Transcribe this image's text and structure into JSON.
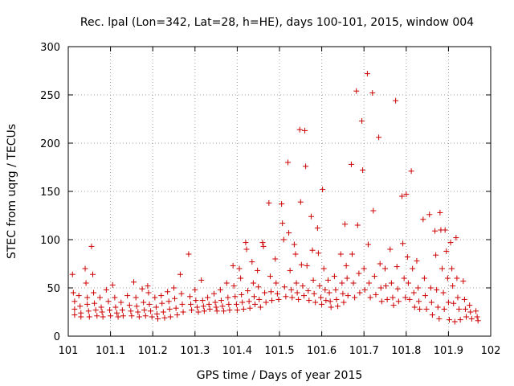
{
  "chart_data": {
    "type": "scatter",
    "title": "Rec. lpal (Lon=342, Lat=28, h=HE), days 100-101, 2015, window 004",
    "xlabel": "GPS time / Days of year 2015",
    "ylabel": "STEC from uqrg / TECUs",
    "xlim": [
      101,
      102
    ],
    "ylim": [
      0,
      300
    ],
    "xticks": [
      "101",
      "101.1",
      "101.2",
      "101.3",
      "101.4",
      "101.5",
      "101.6",
      "101.7",
      "101.8",
      "101.9",
      "102"
    ],
    "yticks": [
      "0",
      "50",
      "100",
      "150",
      "200",
      "250",
      "300"
    ],
    "grid": true,
    "marker": "+",
    "color": "#cc0000",
    "series": [
      {
        "points": [
          [
            101.01,
            64
          ],
          [
            101.012,
            45
          ],
          [
            101.015,
            36
          ],
          [
            101.015,
            28
          ],
          [
            101.015,
            22
          ],
          [
            101.025,
            42
          ],
          [
            101.028,
            31
          ],
          [
            101.03,
            24
          ],
          [
            101.03,
            20
          ],
          [
            101.04,
            70
          ],
          [
            101.042,
            55
          ],
          [
            101.045,
            40
          ],
          [
            101.045,
            33
          ],
          [
            101.048,
            26
          ],
          [
            101.05,
            20
          ],
          [
            101.055,
            93
          ],
          [
            101.058,
            64
          ],
          [
            101.06,
            45
          ],
          [
            101.062,
            34
          ],
          [
            101.065,
            27
          ],
          [
            101.068,
            21
          ],
          [
            101.075,
            40
          ],
          [
            101.078,
            30
          ],
          [
            101.08,
            25
          ],
          [
            101.082,
            20
          ],
          [
            101.09,
            48
          ],
          [
            101.095,
            36
          ],
          [
            101.098,
            27
          ],
          [
            101.1,
            21
          ],
          [
            101.105,
            53
          ],
          [
            101.11,
            40
          ],
          [
            101.112,
            30
          ],
          [
            101.115,
            24
          ],
          [
            101.118,
            20
          ],
          [
            101.125,
            35
          ],
          [
            101.128,
            27
          ],
          [
            101.13,
            21
          ],
          [
            101.14,
            42
          ],
          [
            101.145,
            32
          ],
          [
            101.148,
            26
          ],
          [
            101.15,
            21
          ],
          [
            101.155,
            56
          ],
          [
            101.16,
            40
          ],
          [
            101.162,
            31
          ],
          [
            101.165,
            25
          ],
          [
            101.168,
            20
          ],
          [
            101.175,
            49
          ],
          [
            101.178,
            35
          ],
          [
            101.18,
            27
          ],
          [
            101.183,
            21
          ],
          [
            101.188,
            52
          ],
          [
            101.19,
            45
          ],
          [
            101.192,
            33
          ],
          [
            101.195,
            26
          ],
          [
            101.198,
            20
          ],
          [
            101.205,
            40
          ],
          [
            101.208,
            30
          ],
          [
            101.21,
            23
          ],
          [
            101.212,
            18
          ],
          [
            101.22,
            42
          ],
          [
            101.222,
            34
          ],
          [
            101.225,
            25
          ],
          [
            101.228,
            19
          ],
          [
            101.235,
            46
          ],
          [
            101.238,
            36
          ],
          [
            101.24,
            28
          ],
          [
            101.242,
            20
          ],
          [
            101.25,
            50
          ],
          [
            101.252,
            39
          ],
          [
            101.255,
            29
          ],
          [
            101.258,
            22
          ],
          [
            101.265,
            64
          ],
          [
            101.268,
            44
          ],
          [
            101.27,
            33
          ],
          [
            101.272,
            25
          ],
          [
            101.285,
            85
          ],
          [
            101.288,
            41
          ],
          [
            101.29,
            33
          ],
          [
            101.292,
            27
          ],
          [
            101.3,
            48
          ],
          [
            101.302,
            37
          ],
          [
            101.305,
            30
          ],
          [
            101.308,
            25
          ],
          [
            101.315,
            58
          ],
          [
            101.318,
            37
          ],
          [
            101.32,
            31
          ],
          [
            101.322,
            26
          ],
          [
            101.33,
            40
          ],
          [
            101.333,
            33
          ],
          [
            101.335,
            28
          ],
          [
            101.345,
            44
          ],
          [
            101.348,
            35
          ],
          [
            101.35,
            30
          ],
          [
            101.352,
            26
          ],
          [
            101.36,
            48
          ],
          [
            101.362,
            37
          ],
          [
            101.365,
            31
          ],
          [
            101.368,
            26
          ],
          [
            101.375,
            55
          ],
          [
            101.378,
            40
          ],
          [
            101.38,
            33
          ],
          [
            101.382,
            27
          ],
          [
            101.39,
            73
          ],
          [
            101.392,
            52
          ],
          [
            101.395,
            41
          ],
          [
            101.398,
            33
          ],
          [
            101.4,
            27
          ],
          [
            101.405,
            70
          ],
          [
            101.408,
            60
          ],
          [
            101.41,
            43
          ],
          [
            101.412,
            35
          ],
          [
            101.415,
            28
          ],
          [
            101.42,
            97
          ],
          [
            101.422,
            90
          ],
          [
            101.425,
            47
          ],
          [
            101.428,
            36
          ],
          [
            101.43,
            29
          ],
          [
            101.435,
            77
          ],
          [
            101.438,
            55
          ],
          [
            101.44,
            41
          ],
          [
            101.442,
            33
          ],
          [
            101.448,
            68
          ],
          [
            101.45,
            51
          ],
          [
            101.452,
            38
          ],
          [
            101.455,
            30
          ],
          [
            101.46,
            97
          ],
          [
            101.462,
            93
          ],
          [
            101.465,
            45
          ],
          [
            101.468,
            35
          ],
          [
            101.475,
            138
          ],
          [
            101.478,
            62
          ],
          [
            101.48,
            46
          ],
          [
            101.482,
            37
          ],
          [
            101.49,
            80
          ],
          [
            101.492,
            55
          ],
          [
            101.495,
            44
          ],
          [
            101.498,
            38
          ],
          [
            101.505,
            137
          ],
          [
            101.507,
            117
          ],
          [
            101.51,
            100
          ],
          [
            101.512,
            51
          ],
          [
            101.515,
            41
          ],
          [
            101.52,
            180
          ],
          [
            101.522,
            107
          ],
          [
            101.525,
            68
          ],
          [
            101.528,
            48
          ],
          [
            101.53,
            40
          ],
          [
            101.535,
            95
          ],
          [
            101.538,
            85
          ],
          [
            101.54,
            55
          ],
          [
            101.542,
            45
          ],
          [
            101.545,
            38
          ],
          [
            101.548,
            214
          ],
          [
            101.55,
            139
          ],
          [
            101.552,
            74
          ],
          [
            101.555,
            52
          ],
          [
            101.558,
            42
          ],
          [
            101.56,
            213
          ],
          [
            101.562,
            176
          ],
          [
            101.565,
            73
          ],
          [
            101.568,
            47
          ],
          [
            101.57,
            37
          ],
          [
            101.575,
            124
          ],
          [
            101.578,
            89
          ],
          [
            101.58,
            58
          ],
          [
            101.582,
            44
          ],
          [
            101.585,
            35
          ],
          [
            101.59,
            112
          ],
          [
            101.592,
            86
          ],
          [
            101.595,
            52
          ],
          [
            101.598,
            40
          ],
          [
            101.6,
            33
          ],
          [
            101.602,
            152
          ],
          [
            101.605,
            70
          ],
          [
            101.608,
            48
          ],
          [
            101.61,
            37
          ],
          [
            101.615,
            58
          ],
          [
            101.618,
            45
          ],
          [
            101.62,
            36
          ],
          [
            101.622,
            30
          ],
          [
            101.63,
            62
          ],
          [
            101.633,
            48
          ],
          [
            101.635,
            38
          ],
          [
            101.638,
            31
          ],
          [
            101.645,
            85
          ],
          [
            101.648,
            55
          ],
          [
            101.65,
            44
          ],
          [
            101.652,
            35
          ],
          [
            101.655,
            116
          ],
          [
            101.658,
            73
          ],
          [
            101.66,
            60
          ],
          [
            101.662,
            42
          ],
          [
            101.67,
            178
          ],
          [
            101.672,
            85
          ],
          [
            101.675,
            55
          ],
          [
            101.678,
            40
          ],
          [
            101.682,
            254
          ],
          [
            101.685,
            115
          ],
          [
            101.688,
            65
          ],
          [
            101.69,
            45
          ],
          [
            101.695,
            223
          ],
          [
            101.697,
            172
          ],
          [
            101.7,
            70
          ],
          [
            101.702,
            48
          ],
          [
            101.708,
            272
          ],
          [
            101.71,
            95
          ],
          [
            101.712,
            55
          ],
          [
            101.715,
            40
          ],
          [
            101.72,
            252
          ],
          [
            101.722,
            130
          ],
          [
            101.725,
            62
          ],
          [
            101.728,
            43
          ],
          [
            101.735,
            206
          ],
          [
            101.738,
            75
          ],
          [
            101.74,
            50
          ],
          [
            101.742,
            36
          ],
          [
            101.75,
            70
          ],
          [
            101.752,
            52
          ],
          [
            101.755,
            38
          ],
          [
            101.762,
            90
          ],
          [
            101.765,
            55
          ],
          [
            101.768,
            40
          ],
          [
            101.77,
            32
          ],
          [
            101.775,
            244
          ],
          [
            101.778,
            72
          ],
          [
            101.78,
            49
          ],
          [
            101.782,
            36
          ],
          [
            101.79,
            145
          ],
          [
            101.792,
            96
          ],
          [
            101.795,
            60
          ],
          [
            101.798,
            40
          ],
          [
            101.8,
            147
          ],
          [
            101.803,
            82
          ],
          [
            101.805,
            55
          ],
          [
            101.808,
            38
          ],
          [
            101.812,
            171
          ],
          [
            101.815,
            70
          ],
          [
            101.818,
            45
          ],
          [
            101.82,
            30
          ],
          [
            101.825,
            78
          ],
          [
            101.828,
            50
          ],
          [
            101.83,
            36
          ],
          [
            101.832,
            28
          ],
          [
            101.84,
            121
          ],
          [
            101.843,
            60
          ],
          [
            101.845,
            42
          ],
          [
            101.848,
            28
          ],
          [
            101.855,
            126
          ],
          [
            101.858,
            50
          ],
          [
            101.86,
            35
          ],
          [
            101.862,
            22
          ],
          [
            101.868,
            109
          ],
          [
            101.87,
            84
          ],
          [
            101.872,
            48
          ],
          [
            101.875,
            30
          ],
          [
            101.878,
            18
          ],
          [
            101.88,
            128
          ],
          [
            101.882,
            110
          ],
          [
            101.885,
            70
          ],
          [
            101.888,
            45
          ],
          [
            101.89,
            28
          ],
          [
            101.892,
            110
          ],
          [
            101.895,
            88
          ],
          [
            101.898,
            60
          ],
          [
            101.9,
            35
          ],
          [
            101.902,
            17
          ],
          [
            101.905,
            97
          ],
          [
            101.908,
            70
          ],
          [
            101.91,
            52
          ],
          [
            101.912,
            34
          ],
          [
            101.915,
            15
          ],
          [
            101.918,
            102
          ],
          [
            101.92,
            60
          ],
          [
            101.922,
            40
          ],
          [
            101.925,
            28
          ],
          [
            101.928,
            17
          ],
          [
            101.935,
            57
          ],
          [
            101.938,
            38
          ],
          [
            101.94,
            28
          ],
          [
            101.942,
            20
          ],
          [
            101.95,
            32
          ],
          [
            101.952,
            25
          ],
          [
            101.955,
            18
          ],
          [
            101.965,
            26
          ],
          [
            101.968,
            20
          ],
          [
            101.97,
            16
          ]
        ]
      }
    ]
  }
}
